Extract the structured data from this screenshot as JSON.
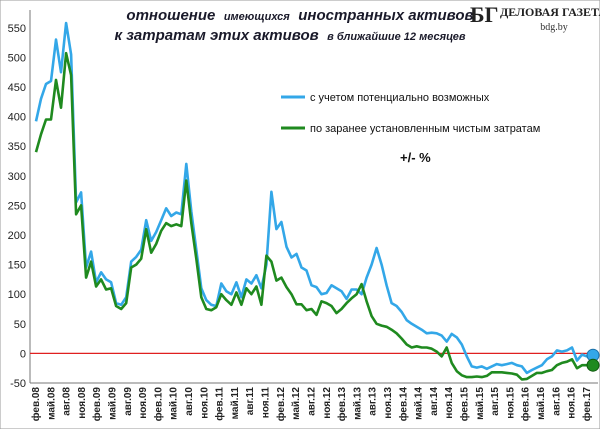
{
  "logo": {
    "mark": "БГ",
    "name": "ДЕЛОВАЯ ГАЗЕТА",
    "url": "bdg.by"
  },
  "chart_data": {
    "type": "line",
    "title_line1_big": "отношение",
    "title_line1_small": "имеющихся",
    "title_line1_big2": "иностранных активов",
    "title_line2_big": "к затратам этих активов",
    "title_line2_small": "в ближайшие 12 месяцев",
    "unit_label": "+/- %",
    "ylim": [
      -50,
      580
    ],
    "yticks": [
      -50,
      0,
      50,
      100,
      150,
      200,
      250,
      300,
      350,
      400,
      450,
      500,
      550
    ],
    "reference_line": 0,
    "grid": false,
    "legend_position": "top-right",
    "start": "2008-02",
    "end": "2017-03",
    "x_tick_labels": [
      "фев.08",
      "май.08",
      "авг.08",
      "ноя.08",
      "фев.09",
      "май.09",
      "авг.09",
      "ноя.09",
      "фев.10",
      "май.10",
      "авг.10",
      "ноя.10",
      "фев.11",
      "май.11",
      "авг.11",
      "ноя.11",
      "фев.12",
      "май.12",
      "авг.12",
      "ноя.12",
      "фев.13",
      "май.13",
      "авг.13",
      "ноя.13",
      "фев.14",
      "май.14",
      "авг.14",
      "ноя.14",
      "фев.15",
      "май.15",
      "авг.15",
      "ноя.15",
      "фев.16",
      "май.16",
      "авг.16",
      "ноя.16",
      "фев.17"
    ],
    "series": [
      {
        "name": "с учетом потенциально возможных",
        "color": "#33a7e8",
        "values": [
          392,
          430,
          455,
          460,
          530,
          475,
          558,
          505,
          255,
          272,
          145,
          172,
          120,
          137,
          125,
          120,
          85,
          82,
          95,
          155,
          163,
          175,
          225,
          190,
          205,
          225,
          245,
          232,
          238,
          235,
          320,
          240,
          175,
          110,
          90,
          82,
          80,
          118,
          105,
          100,
          120,
          95,
          125,
          118,
          132,
          110,
          150,
          273,
          210,
          222,
          180,
          162,
          168,
          145,
          140,
          115,
          112,
          100,
          102,
          115,
          110,
          105,
          92,
          108,
          108,
          100,
          128,
          150,
          178,
          150,
          115,
          85,
          80,
          70,
          56,
          50,
          45,
          40,
          34,
          35,
          34,
          30,
          20,
          33,
          27,
          15,
          -5,
          -22,
          -24,
          -22,
          -26,
          -22,
          -18,
          -20,
          -18,
          -16,
          -20,
          -22,
          -33,
          -28,
          -24,
          -20,
          -10,
          -5,
          5,
          3,
          5,
          10,
          -12,
          -2,
          -5,
          -3
        ],
        "end_marker_value": -3
      },
      {
        "name": "по заранее установленным чистым затратам",
        "color": "#1f8a1f",
        "values": [
          340,
          370,
          395,
          395,
          462,
          415,
          507,
          470,
          235,
          250,
          128,
          155,
          113,
          125,
          108,
          110,
          80,
          75,
          85,
          145,
          150,
          160,
          210,
          170,
          185,
          207,
          220,
          215,
          218,
          215,
          292,
          220,
          160,
          95,
          75,
          73,
          78,
          100,
          90,
          82,
          103,
          82,
          110,
          100,
          113,
          82,
          165,
          155,
          123,
          128,
          112,
          100,
          83,
          83,
          73,
          75,
          65,
          88,
          85,
          80,
          68,
          75,
          85,
          93,
          100,
          117,
          88,
          63,
          50,
          47,
          45,
          40,
          34,
          25,
          15,
          10,
          12,
          10,
          10,
          8,
          3,
          -5,
          10,
          -16,
          -30,
          -37,
          -40,
          -40,
          -39,
          -40,
          -38,
          -32,
          -32,
          -32,
          -33,
          -34,
          -36,
          -44,
          -43,
          -38,
          -33,
          -33,
          -30,
          -28,
          -20,
          -16,
          -14,
          -10,
          -25,
          -20,
          -20,
          -20
        ],
        "end_marker_value": -20
      }
    ]
  }
}
